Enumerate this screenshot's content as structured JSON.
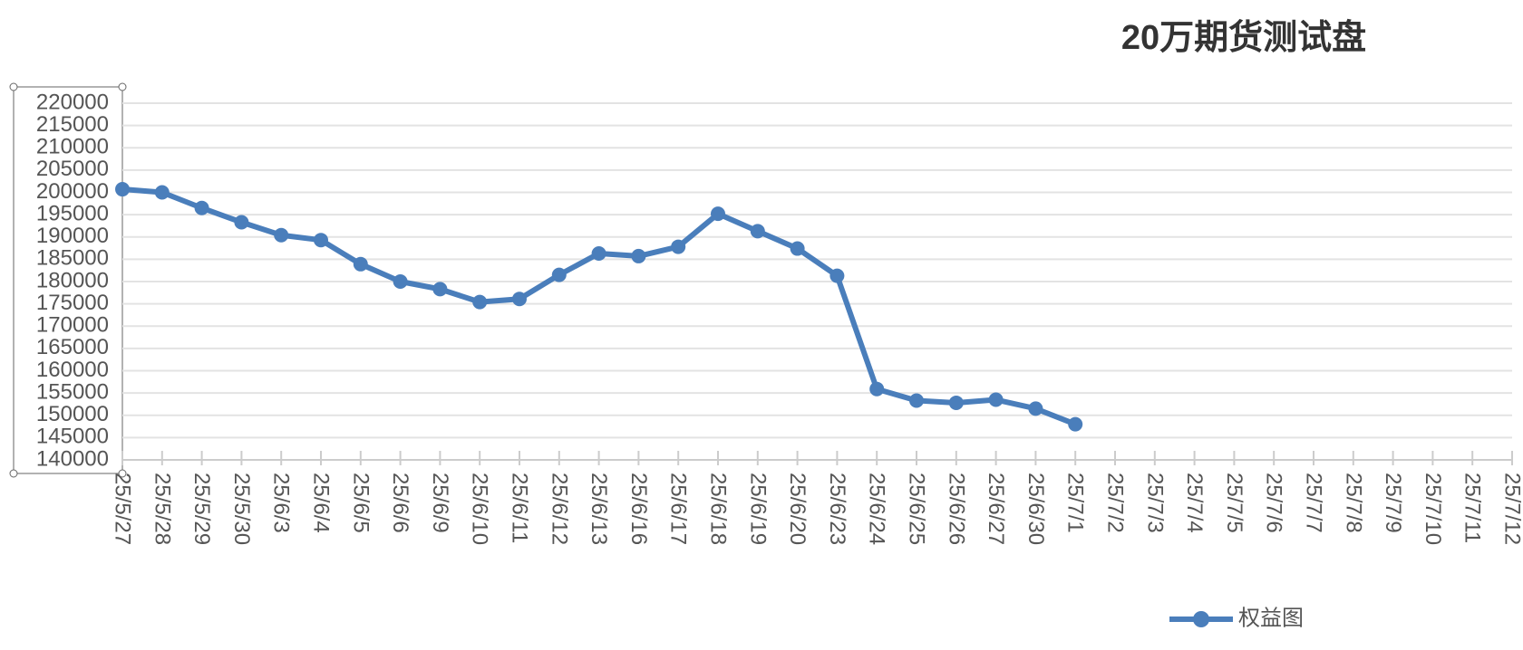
{
  "chart_data": {
    "type": "line",
    "title": "20万期货测试盘",
    "categories": [
      "25/5/27",
      "25/5/28",
      "25/5/29",
      "25/5/30",
      "25/6/3",
      "25/6/4",
      "25/6/5",
      "25/6/6",
      "25/6/9",
      "25/6/10",
      "25/6/11",
      "25/6/12",
      "25/6/13",
      "25/6/16",
      "25/6/17",
      "25/6/18",
      "25/6/19",
      "25/6/20",
      "25/6/23",
      "25/6/24",
      "25/6/25",
      "25/6/26",
      "25/6/27",
      "25/6/30",
      "25/7/1",
      "25/7/2",
      "25/7/3",
      "25/7/4",
      "25/7/5",
      "25/7/6",
      "25/7/7",
      "25/7/8",
      "25/7/9",
      "25/7/10",
      "25/7/11",
      "25/7/12"
    ],
    "series": [
      {
        "name": "权益图",
        "color": "#4a7ebb",
        "values": [
          200700,
          200000,
          196500,
          193300,
          190400,
          189300,
          183900,
          180000,
          178300,
          175400,
          176100,
          181500,
          186300,
          185700,
          187800,
          195200,
          191300,
          187400,
          181300,
          155900,
          153300,
          152800,
          153500,
          151500,
          148000,
          null,
          null,
          null,
          null,
          null,
          null,
          null,
          null,
          null,
          null,
          null
        ]
      }
    ],
    "ylim": [
      140000,
      220000
    ],
    "yticks": [
      140000,
      145000,
      150000,
      155000,
      160000,
      165000,
      170000,
      175000,
      180000,
      185000,
      190000,
      195000,
      200000,
      205000,
      210000,
      215000,
      220000
    ],
    "grid": true,
    "legend": "bottom-right"
  }
}
